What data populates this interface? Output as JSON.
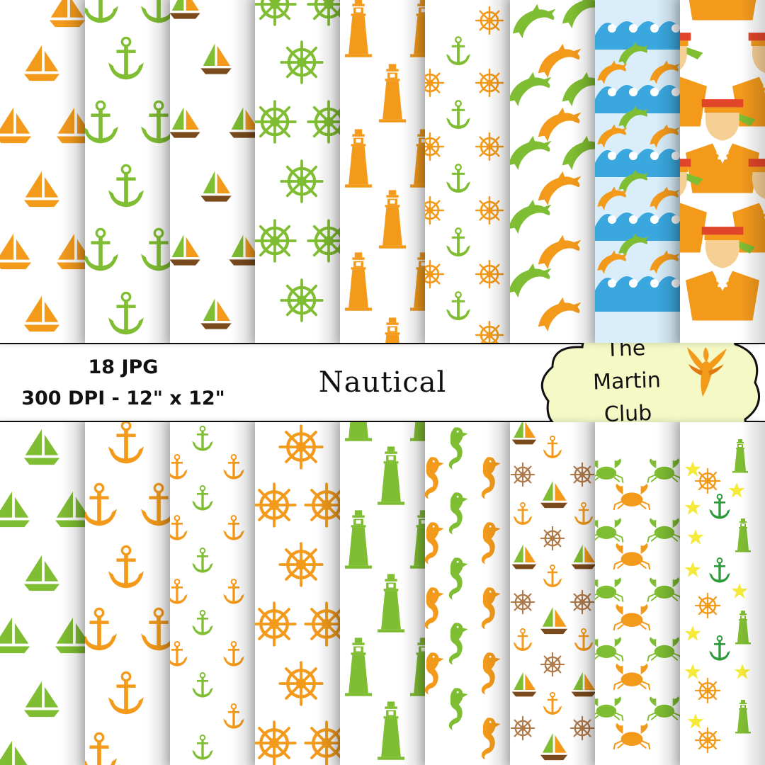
{
  "specs": {
    "count_label": "18 JPG",
    "resolution_label": "300 DPI - 12\" x 12\""
  },
  "title": "Nautical",
  "brand": {
    "line1": "The",
    "line2": "Martin",
    "line3": "Club"
  },
  "colors": {
    "orange": "#f39a1b",
    "green": "#7fbd32",
    "brown": "#7a4a1c",
    "sky": "#3aa8df",
    "pale_sky": "#d9eefa",
    "red": "#e2462a",
    "skin": "#f6cf95",
    "yellow": "#f5e93a",
    "dark_green": "#2e9b3b",
    "logo_fill": "#f4f9c6"
  },
  "papers_top": [
    {
      "motif": "sailboat-icon",
      "color": "#f39a1b"
    },
    {
      "motif": "anchor-icon",
      "color": "#7fbd32"
    },
    {
      "motif": "sailboat-icon",
      "color": "#7fbd32"
    },
    {
      "motif": "ship-wheel-icon",
      "color": "#7fbd32"
    },
    {
      "motif": "lighthouse-icon",
      "color": "#f39a1b"
    },
    {
      "motif": "anchor-and-wheel-icon",
      "color": "#f39a1b"
    },
    {
      "motif": "dolphin-icon",
      "color": "#7fbd32"
    },
    {
      "motif": "wave-icon",
      "color": "#3aa8df"
    },
    {
      "motif": "sailor-icon",
      "color": "#f39a1b"
    }
  ],
  "papers_bottom": [
    {
      "motif": "sailboat-icon",
      "color": "#7fbd32"
    },
    {
      "motif": "anchor-icon",
      "color": "#f39a1b"
    },
    {
      "motif": "anchor-icon",
      "color": "#7fbd32"
    },
    {
      "motif": "ship-wheel-icon",
      "color": "#f39a1b"
    },
    {
      "motif": "lighthouse-icon",
      "color": "#7fbd32"
    },
    {
      "motif": "seahorse-icon",
      "color": "#f39a1b"
    },
    {
      "motif": "mixed-nautical-icon",
      "color": "#f39a1b"
    },
    {
      "motif": "crab-icon",
      "color": "#f39a1b"
    },
    {
      "motif": "star-and-anchor-icon",
      "color": "#f5e93a"
    }
  ]
}
